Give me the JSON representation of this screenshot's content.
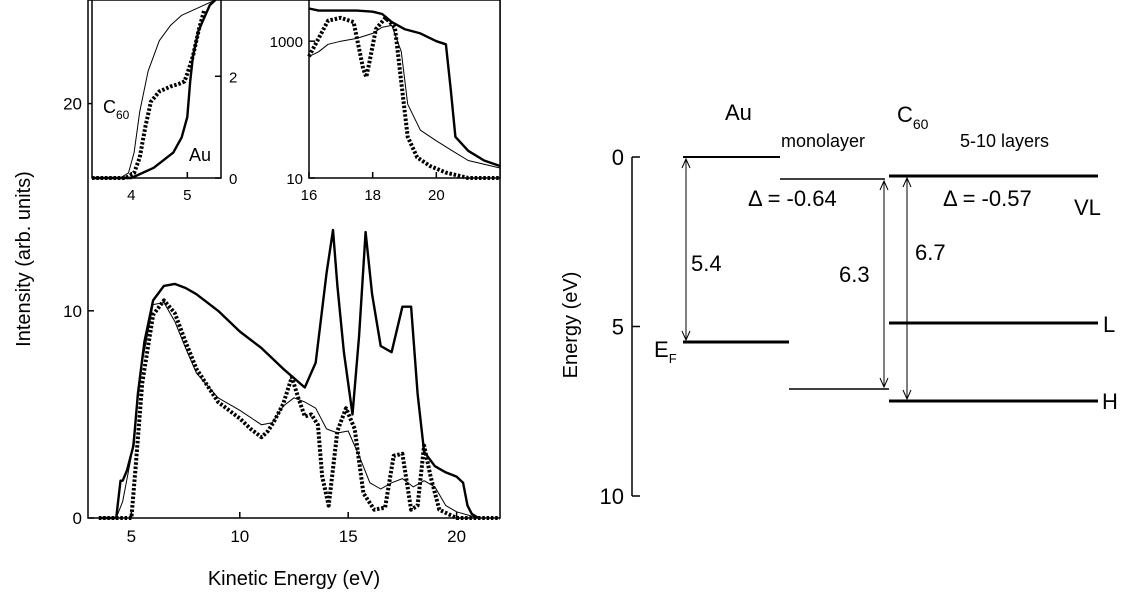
{
  "chart_data": [
    {
      "id": "main",
      "type": "line",
      "xlabel": "Kinetic Energy (eV)",
      "ylabel": "Intensity (arb. units)",
      "xlim": [
        3,
        22
      ],
      "ylim": [
        0,
        25
      ],
      "xticks": [
        5,
        10,
        15,
        20
      ],
      "yticks": [
        0,
        10,
        20
      ],
      "series": [
        {
          "style": "thick",
          "x": [
            3.5,
            4.3,
            4.5,
            4.6,
            4.8,
            5.1,
            5.3,
            5.6,
            6.0,
            6.5,
            7.0,
            7.5,
            8.0,
            9,
            10,
            11,
            12,
            13,
            13.5,
            14.0,
            14.3,
            14.5,
            14.8,
            15.2,
            15.5,
            15.8,
            16.1,
            16.5,
            17,
            17.5,
            17.9,
            18.2,
            18.5,
            19,
            19.5,
            20,
            20.3,
            20.5,
            20.7,
            21
          ],
          "y": [
            0,
            0,
            1.8,
            1.8,
            2.3,
            3.5,
            6,
            8.5,
            10.5,
            11.2,
            11.3,
            11.1,
            10.8,
            10,
            9,
            8.2,
            7.2,
            6.3,
            7.5,
            11.8,
            13.9,
            11.2,
            8,
            5,
            8.8,
            13.8,
            10.8,
            8.3,
            8,
            10.2,
            10.2,
            6,
            3.2,
            2.5,
            2.2,
            2,
            1.7,
            0.6,
            0.2,
            0
          ]
        },
        {
          "style": "dotted",
          "x": [
            3.5,
            5.0,
            5.2,
            5.5,
            6.0,
            6.5,
            7.0,
            7.5,
            8,
            9,
            10,
            10.5,
            11,
            11.3,
            11.6,
            12,
            12.4,
            12.7,
            13,
            13.3,
            13.6,
            13.8,
            14.1,
            14.5,
            14.9,
            15.3,
            15.7,
            16.2,
            16.7,
            17.1,
            17.5,
            17.9,
            18.2,
            18.5,
            18.8,
            19.2,
            19.6,
            20,
            21,
            22
          ],
          "y": [
            0,
            0,
            2.5,
            6.5,
            9.8,
            10.5,
            9.9,
            8.5,
            7.2,
            5.6,
            4.8,
            4.3,
            3.9,
            4.2,
            4.7,
            5.5,
            6.8,
            5.8,
            4.9,
            5,
            4.5,
            2,
            0.6,
            4.2,
            5.3,
            4.3,
            1.2,
            0.4,
            0.5,
            3,
            3.1,
            0.4,
            0.6,
            3.5,
            2,
            0.4,
            0.2,
            0,
            0,
            0
          ]
        },
        {
          "style": "thin",
          "x": [
            3.5,
            4.3,
            4.6,
            5,
            5.5,
            6,
            6.5,
            7,
            7.5,
            8,
            9,
            10,
            11,
            11.5,
            12,
            12.5,
            13,
            13.5,
            14,
            14.5,
            15,
            15.5,
            16,
            16.5,
            17,
            17.5,
            18,
            18.5,
            19,
            19.5,
            20,
            21,
            22
          ],
          "y": [
            0,
            0,
            0.8,
            3,
            7.5,
            10.3,
            10.4,
            9.5,
            8.2,
            7,
            5.8,
            5.2,
            4.5,
            4.6,
            5.4,
            5.8,
            5.6,
            5.3,
            4.3,
            4.1,
            4.2,
            3,
            1.7,
            1.4,
            1.7,
            1.9,
            1.5,
            1.8,
            1.5,
            0.6,
            0.3,
            0,
            0
          ]
        }
      ]
    },
    {
      "id": "inset-left",
      "type": "line",
      "xlim": [
        3.3,
        5.6
      ],
      "ylim": [
        0,
        3.5
      ],
      "xticks": [
        4,
        5
      ],
      "yticks": [
        0,
        2
      ],
      "annotations": {
        "c_main": "C",
        "c_sub": "60",
        "au": "Au"
      },
      "series": [
        {
          "style": "thin",
          "x": [
            3.3,
            3.8,
            3.95,
            4.05,
            4.15,
            4.3,
            4.5,
            4.7,
            4.9,
            5.1,
            5.3,
            5.5
          ],
          "y": [
            0,
            0,
            0.1,
            0.5,
            1.3,
            2.1,
            2.7,
            3.0,
            3.2,
            3.3,
            3.4,
            3.5
          ]
        },
        {
          "style": "dotted",
          "x": [
            3.3,
            3.9,
            4.05,
            4.15,
            4.25,
            4.35,
            4.5,
            4.7,
            4.85,
            4.95,
            5.0,
            5.1,
            5.2,
            5.3
          ],
          "y": [
            0,
            0,
            0.1,
            0.4,
            1.0,
            1.5,
            1.7,
            1.8,
            1.85,
            1.9,
            2.05,
            2.4,
            2.9,
            3.3
          ]
        },
        {
          "style": "thick",
          "x": [
            3.3,
            4.0,
            4.4,
            4.75,
            4.9,
            5.0,
            5.05,
            5.1,
            5.2,
            5.4,
            5.5
          ],
          "y": [
            0,
            0,
            0.2,
            0.5,
            0.8,
            1.2,
            1.9,
            2.4,
            2.9,
            3.4,
            3.5
          ]
        }
      ]
    },
    {
      "id": "inset-right",
      "type": "line",
      "xlim": [
        16,
        22
      ],
      "ylim": [
        10,
        4000
      ],
      "yscale": "log",
      "xticks": [
        16,
        18,
        20
      ],
      "yticks": [
        10,
        1000
      ],
      "series": [
        {
          "style": "thick",
          "x": [
            16,
            16.3,
            16.6,
            17,
            17.5,
            18,
            18.3,
            18.6,
            19,
            19.5,
            20,
            20.3,
            20.45,
            20.6,
            21,
            21.5,
            22
          ],
          "y": [
            3000,
            2800,
            2800,
            2800,
            2800,
            2700,
            2500,
            1900,
            1500,
            1300,
            1000,
            900,
            200,
            40,
            25,
            18,
            15
          ]
        },
        {
          "style": "dotted",
          "x": [
            16,
            16.3,
            16.6,
            17,
            17.4,
            17.7,
            17.8,
            17.9,
            18.1,
            18.4,
            18.7,
            18.9,
            19.1,
            19.4,
            19.8,
            20.3,
            21,
            22
          ],
          "y": [
            600,
            1100,
            2000,
            2200,
            1900,
            400,
            300,
            500,
            1500,
            2200,
            1600,
            250,
            40,
            20,
            15,
            12,
            10,
            10
          ]
        },
        {
          "style": "thin",
          "x": [
            16,
            16.3,
            16.6,
            17,
            17.5,
            18,
            18.3,
            18.6,
            18.9,
            19.1,
            19.5,
            20,
            20.5,
            21,
            22
          ],
          "y": [
            600,
            700,
            900,
            1000,
            1100,
            1300,
            1600,
            1700,
            700,
            120,
            50,
            35,
            25,
            18,
            14
          ]
        }
      ]
    },
    {
      "id": "energy-diagram",
      "type": "diagram",
      "ylabel": "Energy (eV)",
      "ylim": [
        0,
        10
      ],
      "yticks": [
        0,
        5,
        10
      ],
      "labels": {
        "au": "Au",
        "monolayer": "monolayer",
        "c60_main": "C",
        "c60_sub": "60",
        "layers": "5-10 layers",
        "delta1": "Δ = -0.64",
        "delta2": "Δ = -0.57",
        "vl": "VL",
        "ef_main": "E",
        "ef_sub": "F",
        "val_54": "5.4",
        "val_63": "6.3",
        "val_67": "6.7",
        "l": "L",
        "h": "H"
      },
      "levels": {
        "au_vac": 0,
        "au_fermi": 5.4,
        "mono_vac": 0.64,
        "mono_h": 6.9,
        "multi_vac": 0.57,
        "multi_l": 4.95,
        "multi_h": 7.27
      }
    }
  ]
}
